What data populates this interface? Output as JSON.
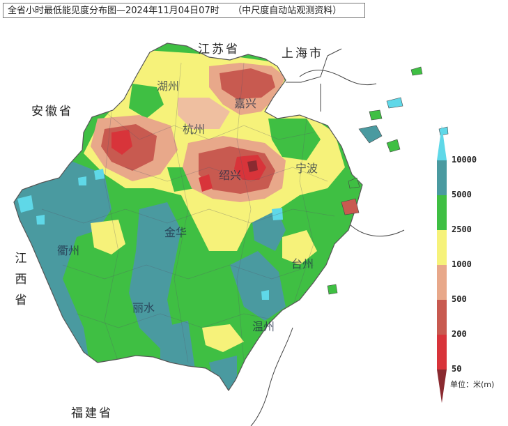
{
  "title": "全省小时最低能见度分布图—2024年11月04日07时　　（中尺度自动站观测资料）",
  "regions": {
    "jiangsu": "江苏省",
    "shanghai": "上海市",
    "anhui": "安徽省",
    "jiangxi": [
      "江",
      "西",
      "省"
    ],
    "fujian": "福建省"
  },
  "cities": {
    "huzhou": "湖州",
    "jiaxing": "嘉兴",
    "hangzhou": "杭州",
    "shaoxing": "绍兴",
    "ningbo": "宁波",
    "jinhua": "金华",
    "quzhou": "衢州",
    "taizhou": "台州",
    "lishui": "丽水",
    "wenzhou": "温州"
  },
  "legend": {
    "unit": "单位：米(m)",
    "bins": [
      {
        "label": "10000",
        "color": "#4a9aa0"
      },
      {
        "label": "5000",
        "color": "#3fbf43"
      },
      {
        "label": "2500",
        "color": "#f6f27a"
      },
      {
        "label": "1000",
        "color": "#e8a88a"
      },
      {
        "label": "500",
        "color": "#c85a50"
      },
      {
        "label": "200",
        "color": "#d8343a"
      },
      {
        "label": "50",
        "color": "#8a2a30"
      }
    ],
    "top_color": "#5fd8e8"
  },
  "colors": {
    "teal": "#4a9aa0",
    "green": "#3fbf43",
    "yellow": "#f6f27a",
    "salmon": "#e8a88a",
    "brick": "#c85a50",
    "red": "#d8343a",
    "dark": "#8a2a30",
    "cyan": "#5fd8e8",
    "lightgreen": "#7fd56a"
  }
}
